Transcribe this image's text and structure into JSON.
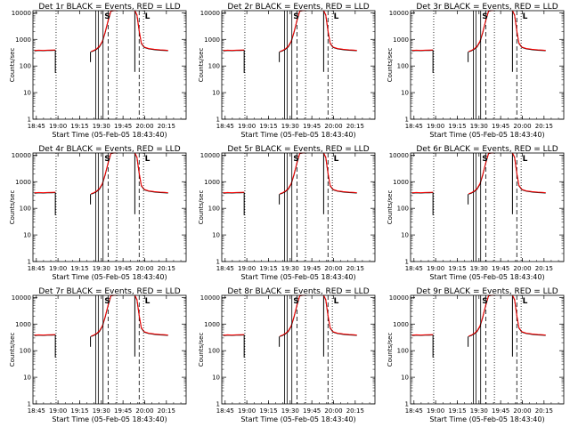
{
  "chart_data": {
    "type": "line",
    "layout": "3x3 grid",
    "shared": {
      "xlabel": "Start Time (05-Feb-05 18:43:40)",
      "ylabel": "Counts/sec",
      "xticks": [
        "18:45",
        "19:00",
        "19:15",
        "19:30",
        "19:45",
        "20:00",
        "20:15"
      ],
      "yticks": [
        "1",
        "10",
        "100",
        "1000",
        "10000"
      ],
      "xlim_minutes": [
        -1,
        105
      ],
      "ylim": [
        1,
        12000
      ],
      "yscale": "log",
      "colors": {
        "events": "#000000",
        "lld": "#ff0000"
      },
      "markers": [
        {
          "label": "S",
          "t": 47.5,
          "style": "solid"
        },
        {
          "label": "L",
          "t": 75.5,
          "style": "dotted"
        }
      ],
      "vlines": [
        {
          "t": 15.0,
          "style": "dotted"
        },
        {
          "t": 42.5,
          "style": "solid"
        },
        {
          "t": 44.2,
          "style": "solid"
        },
        {
          "t": 51.0,
          "style": "dashed"
        },
        {
          "t": 57.0,
          "style": "dotted"
        },
        {
          "t": 72.5,
          "style": "dashed"
        }
      ],
      "series": [
        {
          "name": "Events",
          "segments": [
            {
              "x": [
                0,
                3,
                6,
                9,
                12,
                14.5
              ],
              "y": [
                370,
                380,
                375,
                380,
                385,
                390
              ]
            },
            {
              "x": [
                39.2,
                41,
                43,
                45,
                47,
                49,
                51,
                53,
                55,
                56.5
              ],
              "y": [
                340,
                370,
                420,
                520,
                800,
                1800,
                5000,
                11500,
                12000,
                12000
              ]
            },
            {
              "x": [
                69.5,
                71,
                72.5,
                74,
                76,
                79,
                83,
                87,
                90,
                92.5
              ],
              "y": [
                12000,
                8000,
                2000,
                700,
                500,
                440,
                410,
                390,
                380,
                375
              ]
            }
          ],
          "drops": [
            {
              "x": 14.5,
              "y1": 390,
              "y2": 55
            },
            {
              "x": 38.8,
              "y1": 140,
              "y2": 340
            },
            {
              "x": 69.5,
              "y1": 12000,
              "y2": 60
            }
          ]
        },
        {
          "name": "LLD",
          "segments": [
            {
              "x": [
                0,
                3,
                6,
                9,
                12,
                14.5
              ],
              "y": [
                380,
                392,
                388,
                392,
                398,
                402
              ]
            },
            {
              "x": [
                39.2,
                41,
                43,
                45,
                47,
                49,
                51,
                53,
                55,
                56.5
              ],
              "y": [
                352,
                384,
                440,
                550,
                850,
                1900,
                5200,
                11800,
                12000,
                12000
              ]
            },
            {
              "x": [
                69.5,
                71,
                72.5,
                74,
                76,
                79,
                83,
                87,
                90,
                92.5
              ],
              "y": [
                12000,
                8400,
                2100,
                730,
                520,
                455,
                425,
                405,
                395,
                388
              ]
            }
          ],
          "drops": []
        }
      ]
    },
    "panels": [
      {
        "title": "Det 1r BLACK = Events, RED = LLD"
      },
      {
        "title": "Det 2r BLACK = Events, RED = LLD"
      },
      {
        "title": "Det 3r BLACK = Events, RED = LLD"
      },
      {
        "title": "Det 4r BLACK = Events, RED = LLD"
      },
      {
        "title": "Det 5r BLACK = Events, RED = LLD"
      },
      {
        "title": "Det 6r BLACK = Events, RED = LLD"
      },
      {
        "title": "Det 7r BLACK = Events, RED = LLD"
      },
      {
        "title": "Det 8r BLACK = Events, RED = LLD"
      },
      {
        "title": "Det 9r BLACK = Events, RED = LLD"
      }
    ]
  }
}
